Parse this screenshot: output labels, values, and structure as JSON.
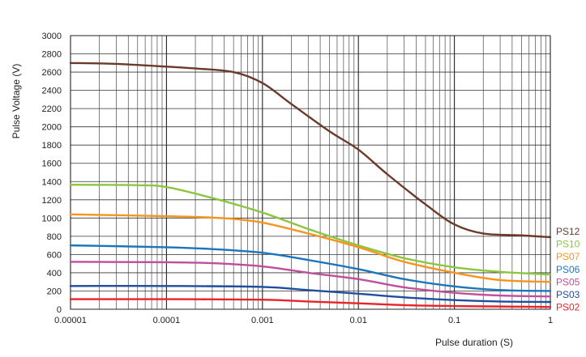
{
  "chart_data": {
    "type": "line",
    "title": "",
    "xlabel": "Pulse duration (S)",
    "ylabel": "Pulse Voltage (V)",
    "x_scale": "log",
    "xlim": [
      1e-05,
      1
    ],
    "ylim": [
      0,
      3000
    ],
    "grid": true,
    "legend": "right",
    "x_ticks": [
      {
        "value": 1e-05,
        "label": "0.00001"
      },
      {
        "value": 0.0001,
        "label": "0.0001"
      },
      {
        "value": 0.001,
        "label": "0.001"
      },
      {
        "value": 0.01,
        "label": "0.01"
      },
      {
        "value": 0.1,
        "label": "0.1"
      },
      {
        "value": 1,
        "label": "1"
      }
    ],
    "y_ticks": [
      {
        "value": 0,
        "label": "0"
      },
      {
        "value": 200,
        "label": "200"
      },
      {
        "value": 400,
        "label": "400"
      },
      {
        "value": 600,
        "label": "600"
      },
      {
        "value": 800,
        "label": "800"
      },
      {
        "value": 1000,
        "label": "1000"
      },
      {
        "value": 1200,
        "label": "1200"
      },
      {
        "value": 1400,
        "label": "1400"
      },
      {
        "value": 1600,
        "label": "1600"
      },
      {
        "value": 1800,
        "label": "1800"
      },
      {
        "value": 2000,
        "label": "2000"
      },
      {
        "value": 2200,
        "label": "2200"
      },
      {
        "value": 2400,
        "label": "2400"
      },
      {
        "value": 2600,
        "label": "2600"
      },
      {
        "value": 2800,
        "label": "2800"
      },
      {
        "value": 3000,
        "label": "3000"
      }
    ],
    "series": [
      {
        "name": "PS12",
        "color": "#6b3a2a",
        "x": [
          1e-05,
          3e-05,
          0.0001,
          0.0002,
          0.0005,
          0.001,
          0.002,
          0.005,
          0.01,
          0.02,
          0.05,
          0.1,
          0.2,
          0.5,
          1
        ],
        "y": [
          2700,
          2690,
          2660,
          2640,
          2600,
          2480,
          2250,
          1950,
          1750,
          1480,
          1150,
          930,
          830,
          810,
          790
        ]
      },
      {
        "name": "PS10",
        "color": "#8cc63f",
        "x": [
          1e-05,
          5e-05,
          0.0001,
          0.0003,
          0.001,
          0.003,
          0.01,
          0.03,
          0.1,
          0.3,
          1
        ],
        "y": [
          1365,
          1360,
          1340,
          1220,
          1060,
          880,
          700,
          560,
          460,
          410,
          380
        ]
      },
      {
        "name": "PS07",
        "color": "#f7941d",
        "x": [
          1e-05,
          0.0001,
          0.0003,
          0.0005,
          0.001,
          0.003,
          0.01,
          0.03,
          0.1,
          0.3,
          1
        ],
        "y": [
          1040,
          1020,
          1005,
          990,
          950,
          830,
          680,
          520,
          400,
          320,
          300
        ]
      },
      {
        "name": "PS06",
        "color": "#1b75bc",
        "x": [
          1e-05,
          0.0001,
          0.0003,
          0.001,
          0.003,
          0.01,
          0.03,
          0.1,
          0.3,
          1
        ],
        "y": [
          700,
          680,
          660,
          620,
          540,
          440,
          330,
          250,
          210,
          200
        ]
      },
      {
        "name": "PS05",
        "color": "#c04e9e",
        "x": [
          1e-05,
          0.0001,
          0.0003,
          0.001,
          0.003,
          0.01,
          0.03,
          0.1,
          0.3,
          1
        ],
        "y": [
          520,
          515,
          505,
          470,
          400,
          330,
          240,
          180,
          150,
          140
        ]
      },
      {
        "name": "PS03",
        "color": "#1f4e9e",
        "x": [
          1e-05,
          0.0001,
          0.001,
          0.003,
          0.01,
          0.03,
          0.1,
          0.3,
          1
        ],
        "y": [
          255,
          255,
          245,
          210,
          170,
          130,
          100,
          85,
          80
        ]
      },
      {
        "name": "PS02",
        "color": "#e8232a",
        "x": [
          1e-05,
          0.0001,
          0.001,
          0.003,
          0.01,
          0.03,
          0.1,
          0.3,
          1
        ],
        "y": [
          110,
          110,
          105,
          85,
          65,
          45,
          35,
          30,
          25
        ]
      }
    ]
  }
}
